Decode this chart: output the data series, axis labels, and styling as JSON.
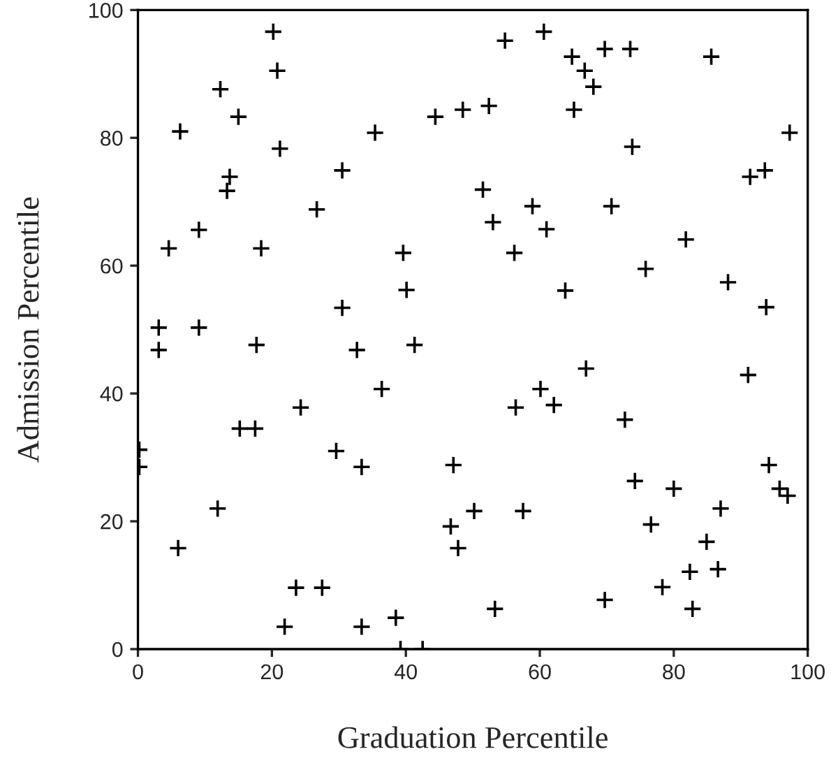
{
  "chart_data": {
    "type": "scatter",
    "xlabel": "Graduation Percentile",
    "ylabel": "Admission Percentile",
    "xlim": [
      0,
      100
    ],
    "ylim": [
      0,
      100
    ],
    "xticks": [
      0,
      20,
      40,
      60,
      80,
      100
    ],
    "yticks": [
      0,
      20,
      40,
      60,
      80,
      100
    ],
    "grid": false,
    "marker": "cross",
    "series": [
      {
        "color": "#000000",
        "x": [
          20.2,
          20.8,
          12.3,
          15.0,
          6.3,
          21.2,
          13.7,
          13.3,
          30.5,
          35.4,
          44.4,
          48.5,
          26.7,
          9.1,
          4.6,
          18.4,
          39.6,
          40.1,
          30.5,
          3.1,
          9.1,
          54.8,
          60.6,
          64.8,
          69.7,
          73.5,
          85.6,
          66.7,
          68.0,
          52.4,
          65.1,
          97.3,
          73.8,
          91.4,
          93.6,
          51.5,
          58.9,
          70.7,
          53.0,
          61.0,
          81.8,
          56.2,
          75.8,
          88.1,
          63.8,
          93.8,
          3.1,
          17.7,
          32.7,
          41.3,
          36.4,
          24.3,
          15.2,
          17.5,
          29.6,
          0.2,
          0.2,
          33.4,
          47.1,
          11.9,
          50.2,
          46.7,
          47.8,
          6.0,
          23.6,
          27.5,
          38.5,
          21.9,
          33.4,
          39.2,
          42.5,
          66.9,
          60.1,
          56.4,
          62.1,
          91.1,
          72.7,
          94.2,
          74.2,
          80.0,
          95.8,
          97.0,
          57.5,
          87.0,
          76.6,
          84.9,
          82.4,
          86.6,
          78.3,
          69.7,
          53.3,
          82.8
        ],
        "values": [
          96.6,
          90.5,
          87.6,
          83.3,
          81.0,
          78.3,
          73.9,
          71.7,
          74.9,
          80.8,
          83.3,
          84.4,
          68.8,
          65.6,
          62.7,
          62.7,
          62.0,
          56.2,
          53.4,
          50.3,
          50.3,
          95.2,
          96.6,
          92.7,
          93.9,
          93.9,
          92.7,
          90.5,
          88.0,
          85.0,
          84.4,
          80.8,
          78.6,
          73.9,
          74.9,
          71.9,
          69.3,
          69.3,
          66.8,
          65.7,
          64.1,
          62.0,
          59.5,
          57.4,
          56.1,
          53.5,
          46.8,
          47.6,
          46.8,
          47.6,
          40.7,
          37.8,
          34.5,
          34.5,
          31.0,
          31.2,
          28.5,
          28.5,
          28.8,
          22.0,
          21.6,
          19.2,
          15.8,
          15.8,
          9.6,
          9.6,
          4.9,
          3.5,
          3.5,
          0,
          0,
          43.9,
          40.7,
          37.8,
          38.2,
          42.9,
          35.9,
          28.8,
          26.3,
          25.1,
          25.1,
          24.0,
          21.6,
          22.0,
          19.5,
          16.8,
          12.1,
          12.5,
          9.7,
          7.7,
          6.3,
          6.3
        ]
      }
    ]
  }
}
